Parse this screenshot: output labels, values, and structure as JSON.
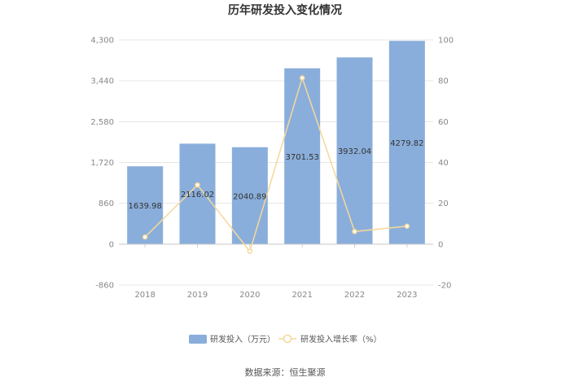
{
  "chart_data": {
    "type": "bar",
    "title": "历年研发投入变化情况",
    "categories": [
      "2018",
      "2019",
      "2020",
      "2021",
      "2022",
      "2023"
    ],
    "series": [
      {
        "name": "研发投入（万元）",
        "type": "bar",
        "axis": "left",
        "color": "#8aaedb",
        "values": [
          1639.98,
          2116.02,
          2040.89,
          3701.53,
          3932.04,
          4279.82
        ],
        "labels": [
          "1639.98",
          "2116.02",
          "2040.89",
          "3701.53",
          "3932.04",
          "4279.82"
        ]
      },
      {
        "name": "研发投入增长率（%）",
        "type": "line",
        "axis": "right",
        "color": "#f5d89a",
        "values": [
          3.5,
          29.0,
          -3.5,
          81.4,
          6.2,
          8.8
        ]
      }
    ],
    "y_left": {
      "range": [
        -860,
        4300
      ],
      "ticks": [
        -860,
        0,
        860,
        1720,
        2580,
        3440,
        4300
      ],
      "tick_labels": [
        "-860",
        "0",
        "860",
        "1,720",
        "2,580",
        "3,440",
        "4,300"
      ]
    },
    "y_right": {
      "range": [
        -20,
        100
      ],
      "ticks": [
        -20,
        0,
        20,
        40,
        60,
        80,
        100
      ],
      "tick_labels": [
        "-20",
        "0",
        "20",
        "40",
        "60",
        "80",
        "100"
      ]
    },
    "grid": true,
    "legend": "bottom-center"
  },
  "source": "数据来源：恒生聚源"
}
